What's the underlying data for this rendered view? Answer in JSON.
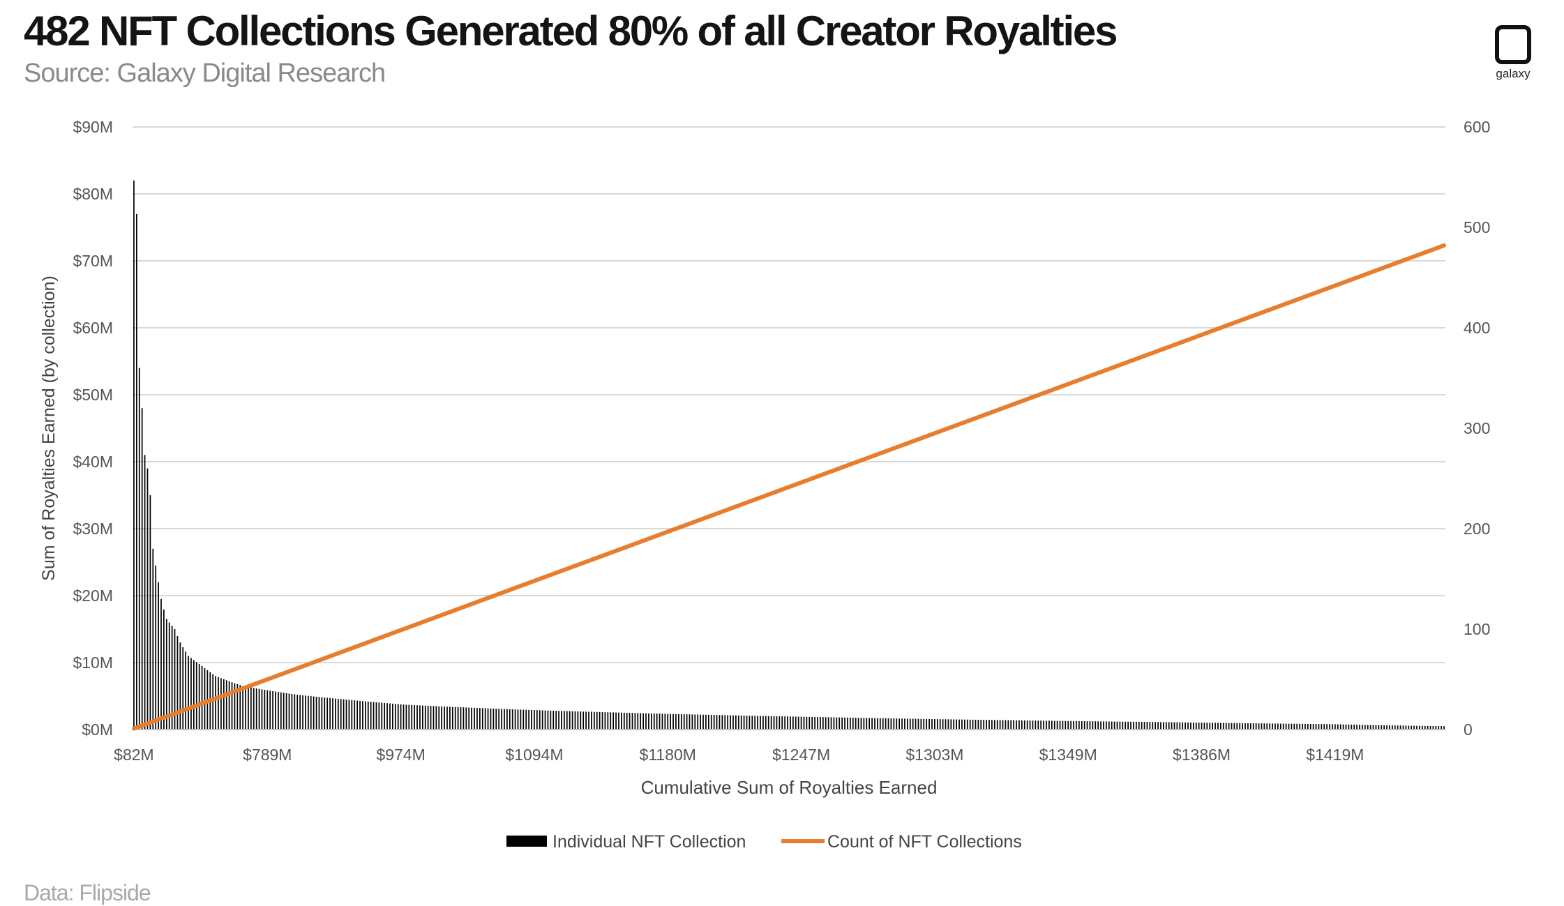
{
  "header": {
    "title": "482 NFT Collections Generated 80% of all Creator Royalties",
    "subtitle": "Source: Galaxy Digital Research"
  },
  "footer": {
    "text": "Data: Flipside"
  },
  "logo": {
    "label": "galaxy",
    "icon": "galaxy-logo-icon"
  },
  "chart_data": {
    "type": "bar",
    "grid": true,
    "legend_position": "bottom-center",
    "xlabel": "Cumulative Sum of Royalties Earned",
    "ylabel": "Sum of Royalties Earned (by collection)",
    "y2label": "",
    "ylim": [
      0,
      90
    ],
    "y2lim": [
      0,
      600
    ],
    "y_ticks": [
      "$0M",
      "$10M",
      "$20M",
      "$30M",
      "$40M",
      "$50M",
      "$60M",
      "$70M",
      "$80M",
      "$90M"
    ],
    "y2_ticks": [
      "0",
      "100",
      "200",
      "300",
      "400",
      "500",
      "600"
    ],
    "x_tick_labels": [
      "$82M",
      "$789M",
      "$974M",
      "$1094M",
      "$1180M",
      "$1247M",
      "$1303M",
      "$1349M",
      "$1386M",
      "$1419M"
    ],
    "x_tick_positions": [
      0,
      49,
      98,
      147,
      196,
      245,
      294,
      343,
      392,
      441
    ],
    "n_collections": 482,
    "bar_key_values": [
      [
        0,
        82
      ],
      [
        1,
        77
      ],
      [
        2,
        54
      ],
      [
        3,
        48
      ],
      [
        4,
        41
      ],
      [
        5,
        39
      ],
      [
        6,
        35
      ],
      [
        7,
        27
      ],
      [
        8,
        24.5
      ],
      [
        9,
        22
      ],
      [
        10,
        19.5
      ],
      [
        12,
        16.5
      ],
      [
        15,
        15
      ],
      [
        17,
        13
      ],
      [
        20,
        11
      ],
      [
        25,
        9.5
      ],
      [
        30,
        8
      ],
      [
        40,
        6.5
      ],
      [
        50,
        5.8
      ],
      [
        60,
        5.2
      ],
      [
        80,
        4.4
      ],
      [
        100,
        3.7
      ],
      [
        140,
        3.0
      ],
      [
        200,
        2.3
      ],
      [
        260,
        1.8
      ],
      [
        320,
        1.4
      ],
      [
        380,
        1.1
      ],
      [
        440,
        0.8
      ],
      [
        481,
        0.5
      ]
    ],
    "series": [
      {
        "name": "Individual NFT Collection",
        "type": "bar",
        "axis": "left",
        "color": "#000000"
      },
      {
        "name": "Count of NFT Collections",
        "type": "line",
        "axis": "right",
        "color": "#e87d2e",
        "x": [
          0,
          481
        ],
        "values": [
          1,
          482
        ]
      }
    ]
  }
}
